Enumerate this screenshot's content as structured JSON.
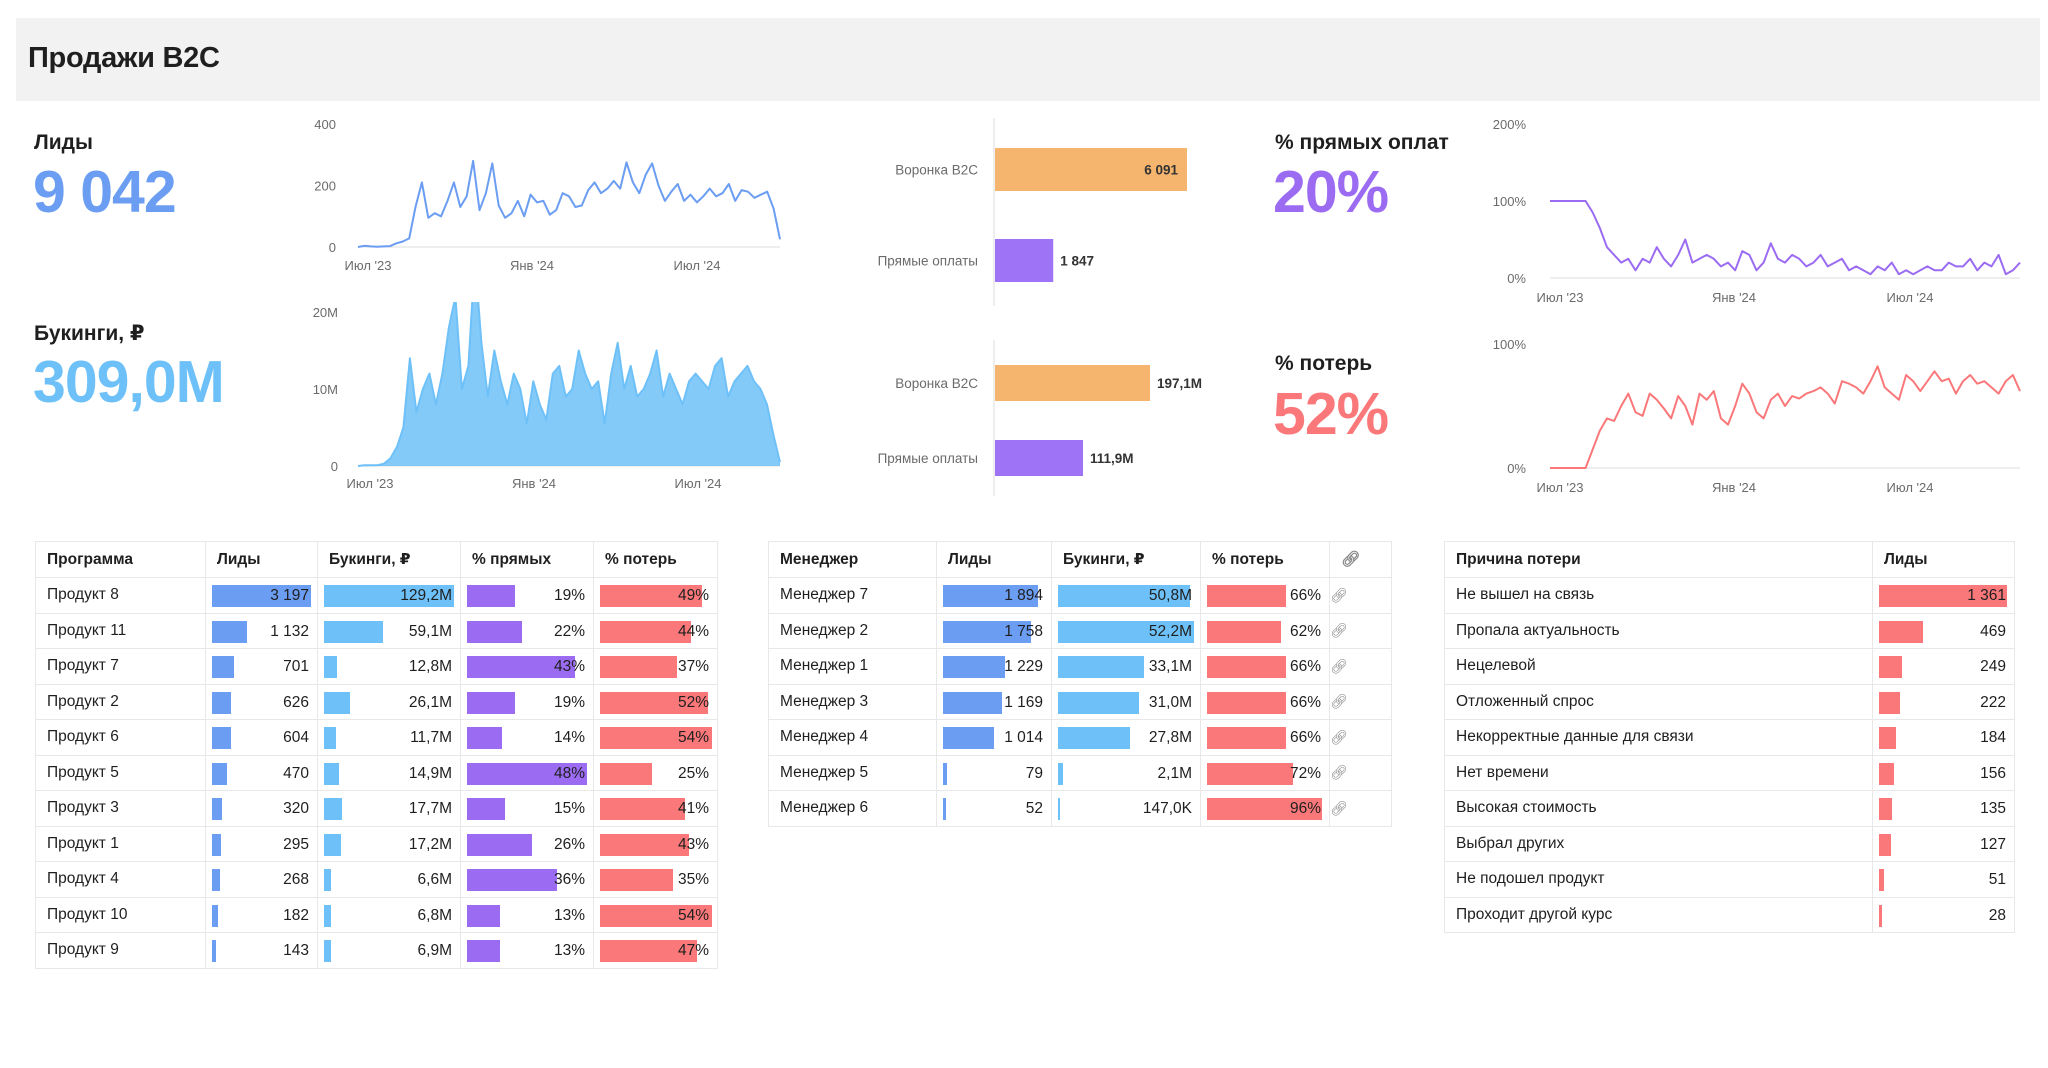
{
  "header": {
    "title": "Продажи B2C"
  },
  "colors": {
    "blue": "#6b9df2",
    "lightblue": "#6ec1f8",
    "purple": "#9b6cf2",
    "red": "#fa787a",
    "orange": "#f6b56f",
    "funnel_purple": "#9f73f5"
  },
  "kpis": {
    "leads": {
      "label": "Лиды",
      "value": "9 042"
    },
    "bookings": {
      "label": "Букинги, ₽",
      "value": "309,0M"
    },
    "direct": {
      "label": "% прямых оплат",
      "value": "20%"
    },
    "losses": {
      "label": "% потерь",
      "value": "52%"
    }
  },
  "chart_data": [
    {
      "type": "line",
      "name": "leads-line-chart",
      "x_ticks": [
        "Июл '23",
        "Янв '24",
        "Июл '24"
      ],
      "y_ticks": [
        "0",
        "200",
        "400"
      ],
      "ylim": [
        0,
        400
      ],
      "values": [
        0,
        4,
        2,
        1,
        2,
        3,
        12,
        18,
        28,
        130,
        210,
        95,
        110,
        100,
        150,
        210,
        130,
        165,
        280,
        120,
        175,
        272,
        135,
        95,
        110,
        150,
        100,
        170,
        145,
        150,
        105,
        120,
        175,
        165,
        130,
        135,
        185,
        210,
        175,
        190,
        215,
        190,
        275,
        210,
        175,
        235,
        272,
        200,
        150,
        180,
        205,
        150,
        170,
        145,
        165,
        190,
        165,
        175,
        205,
        150,
        185,
        180,
        160,
        170,
        180,
        125,
        25
      ]
    },
    {
      "type": "area",
      "name": "bookings-area-chart",
      "x_ticks": [
        "Июл '23",
        "Янв '24",
        "Июл '24"
      ],
      "y_ticks": [
        "0",
        "10M",
        "20M"
      ],
      "ylim": [
        0,
        20
      ],
      "values": [
        0,
        0.1,
        0.1,
        0.1,
        0.3,
        1,
        2.5,
        5,
        14,
        7,
        10,
        12,
        8,
        12,
        18,
        22,
        10,
        13,
        27,
        16,
        9,
        15,
        11,
        8,
        12,
        10,
        5.5,
        11,
        8,
        6,
        12,
        13,
        9,
        10,
        15,
        12,
        10,
        11,
        5.5,
        12,
        16,
        10,
        13,
        9,
        10,
        12,
        15,
        9,
        12,
        10,
        8,
        11,
        12,
        11,
        10,
        13,
        14,
        9,
        11,
        12,
        13,
        11,
        10,
        8,
        4,
        0.5
      ]
    },
    {
      "type": "line",
      "name": "direct-payments-line-chart",
      "x_ticks": [
        "Июл '23",
        "Янв '24",
        "Июл '24"
      ],
      "y_ticks": [
        "0%",
        "100%",
        "200%"
      ],
      "ylim": [
        0,
        200
      ],
      "values": [
        100,
        100,
        100,
        100,
        100,
        100,
        85,
        65,
        40,
        30,
        20,
        25,
        10,
        25,
        20,
        40,
        25,
        15,
        30,
        50,
        20,
        25,
        30,
        25,
        15,
        20,
        10,
        35,
        30,
        10,
        20,
        45,
        25,
        20,
        30,
        25,
        15,
        20,
        30,
        15,
        20,
        25,
        10,
        15,
        10,
        5,
        15,
        10,
        20,
        5,
        10,
        5,
        10,
        15,
        10,
        10,
        20,
        15,
        15,
        25,
        10,
        20,
        15,
        30,
        5,
        10,
        20
      ]
    },
    {
      "type": "line",
      "name": "losses-line-chart",
      "x_ticks": [
        "Июл '23",
        "Янв '24",
        "Июл '24"
      ],
      "y_ticks": [
        "0%",
        "100%"
      ],
      "ylim": [
        0,
        100
      ],
      "values": [
        0,
        0,
        0,
        0,
        0,
        0,
        15,
        30,
        40,
        38,
        50,
        60,
        45,
        42,
        60,
        55,
        48,
        40,
        58,
        50,
        35,
        60,
        55,
        62,
        40,
        35,
        50,
        68,
        60,
        45,
        40,
        55,
        60,
        50,
        58,
        56,
        60,
        62,
        65,
        60,
        52,
        70,
        68,
        65,
        60,
        70,
        82,
        65,
        60,
        55,
        75,
        70,
        62,
        70,
        78,
        70,
        72,
        60,
        70,
        75,
        68,
        70,
        65,
        60,
        70,
        75,
        62
      ]
    },
    {
      "type": "bar",
      "name": "funnel-leads-bar-chart",
      "categories": [
        "Воронка B2C",
        "Прямые оплаты"
      ],
      "values": [
        6091,
        1847
      ],
      "labels": [
        "6 091",
        "1 847"
      ]
    },
    {
      "type": "bar",
      "name": "funnel-bookings-bar-chart",
      "categories": [
        "Воронка B2C",
        "Прямые оплаты"
      ],
      "values": [
        197.1,
        111.9
      ],
      "labels": [
        "197,1M",
        "111,9M"
      ]
    }
  ],
  "programs_table": {
    "headers": [
      "Программа",
      "Лиды",
      "Букинги, ₽",
      "% прямых",
      "% потерь"
    ],
    "rows": [
      {
        "name": "Продукт 8",
        "leads": "3 197",
        "leads_n": 3197,
        "bookings": "129,2M",
        "bookings_n": 129.2,
        "direct": "19%",
        "direct_n": 19,
        "loss": "49%",
        "loss_n": 49
      },
      {
        "name": "Продукт 11",
        "leads": "1 132",
        "leads_n": 1132,
        "bookings": "59,1M",
        "bookings_n": 59.1,
        "direct": "22%",
        "direct_n": 22,
        "loss": "44%",
        "loss_n": 44
      },
      {
        "name": "Продукт 7",
        "leads": "701",
        "leads_n": 701,
        "bookings": "12,8M",
        "bookings_n": 12.8,
        "direct": "43%",
        "direct_n": 43,
        "loss": "37%",
        "loss_n": 37
      },
      {
        "name": "Продукт 2",
        "leads": "626",
        "leads_n": 626,
        "bookings": "26,1M",
        "bookings_n": 26.1,
        "direct": "19%",
        "direct_n": 19,
        "loss": "52%",
        "loss_n": 52
      },
      {
        "name": "Продукт 6",
        "leads": "604",
        "leads_n": 604,
        "bookings": "11,7M",
        "bookings_n": 11.7,
        "direct": "14%",
        "direct_n": 14,
        "loss": "54%",
        "loss_n": 54
      },
      {
        "name": "Продукт 5",
        "leads": "470",
        "leads_n": 470,
        "bookings": "14,9M",
        "bookings_n": 14.9,
        "direct": "48%",
        "direct_n": 48,
        "loss": "25%",
        "loss_n": 25
      },
      {
        "name": "Продукт 3",
        "leads": "320",
        "leads_n": 320,
        "bookings": "17,7M",
        "bookings_n": 17.7,
        "direct": "15%",
        "direct_n": 15,
        "loss": "41%",
        "loss_n": 41
      },
      {
        "name": "Продукт 1",
        "leads": "295",
        "leads_n": 295,
        "bookings": "17,2M",
        "bookings_n": 17.2,
        "direct": "26%",
        "direct_n": 26,
        "loss": "43%",
        "loss_n": 43
      },
      {
        "name": "Продукт 4",
        "leads": "268",
        "leads_n": 268,
        "bookings": "6,6M",
        "bookings_n": 6.6,
        "direct": "36%",
        "direct_n": 36,
        "loss": "35%",
        "loss_n": 35
      },
      {
        "name": "Продукт 10",
        "leads": "182",
        "leads_n": 182,
        "bookings": "6,8M",
        "bookings_n": 6.8,
        "direct": "13%",
        "direct_n": 13,
        "loss": "54%",
        "loss_n": 54
      },
      {
        "name": "Продукт 9",
        "leads": "143",
        "leads_n": 143,
        "bookings": "6,9M",
        "bookings_n": 6.9,
        "direct": "13%",
        "direct_n": 13,
        "loss": "47%",
        "loss_n": 47
      }
    ]
  },
  "managers_table": {
    "headers": [
      "Менеджер",
      "Лиды",
      "Букинги, ₽",
      "% потерь",
      ""
    ],
    "rows": [
      {
        "name": "Менеджер 7",
        "leads": "1 894",
        "leads_n": 1894,
        "bookings": "50,8M",
        "bookings_n": 50.8,
        "loss": "66%",
        "loss_n": 66
      },
      {
        "name": "Менеджер 2",
        "leads": "1 758",
        "leads_n": 1758,
        "bookings": "52,2M",
        "bookings_n": 52.2,
        "loss": "62%",
        "loss_n": 62
      },
      {
        "name": "Менеджер 1",
        "leads": "1 229",
        "leads_n": 1229,
        "bookings": "33,1M",
        "bookings_n": 33.1,
        "loss": "66%",
        "loss_n": 66
      },
      {
        "name": "Менеджер 3",
        "leads": "1 169",
        "leads_n": 1169,
        "bookings": "31,0M",
        "bookings_n": 31.0,
        "loss": "66%",
        "loss_n": 66
      },
      {
        "name": "Менеджер 4",
        "leads": "1 014",
        "leads_n": 1014,
        "bookings": "27,8M",
        "bookings_n": 27.8,
        "loss": "66%",
        "loss_n": 66
      },
      {
        "name": "Менеджер 5",
        "leads": "79",
        "leads_n": 79,
        "bookings": "2,1M",
        "bookings_n": 2.1,
        "loss": "72%",
        "loss_n": 72
      },
      {
        "name": "Менеджер 6",
        "leads": "52",
        "leads_n": 52,
        "bookings": "147,0K",
        "bookings_n": 0.147,
        "loss": "96%",
        "loss_n": 96
      }
    ]
  },
  "reasons_table": {
    "headers": [
      "Причина потери",
      "Лиды"
    ],
    "rows": [
      {
        "name": "Не вышел на связь",
        "leads": "1 361",
        "leads_n": 1361
      },
      {
        "name": "Пропала актуальность",
        "leads": "469",
        "leads_n": 469
      },
      {
        "name": "Нецелевой",
        "leads": "249",
        "leads_n": 249
      },
      {
        "name": "Отложенный спрос",
        "leads": "222",
        "leads_n": 222
      },
      {
        "name": "Некорректные данные для связи",
        "leads": "184",
        "leads_n": 184
      },
      {
        "name": "Нет времени",
        "leads": "156",
        "leads_n": 156
      },
      {
        "name": "Высокая стоимость",
        "leads": "135",
        "leads_n": 135
      },
      {
        "name": "Выбрал других",
        "leads": "127",
        "leads_n": 127
      },
      {
        "name": "Не подошел продукт",
        "leads": "51",
        "leads_n": 51
      },
      {
        "name": "Проходит другой курс",
        "leads": "28",
        "leads_n": 28
      }
    ]
  }
}
